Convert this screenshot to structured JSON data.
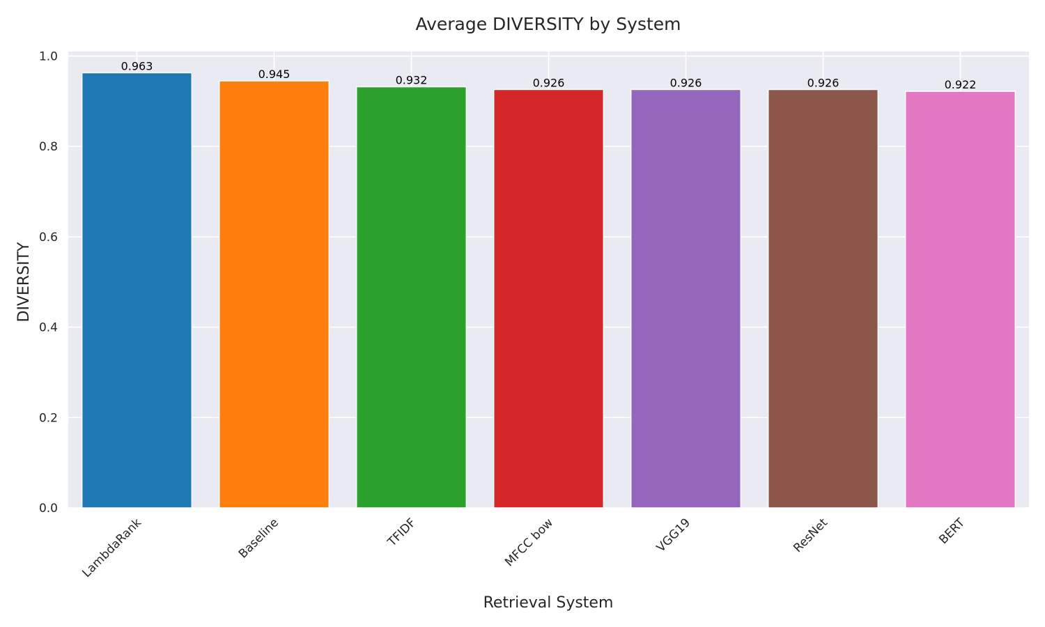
{
  "chart_data": {
    "type": "bar",
    "title": "Average DIVERSITY by System",
    "xlabel": "Retrieval System",
    "ylabel": "DIVERSITY",
    "categories": [
      "LambdaRank",
      "Baseline",
      "TFIDF",
      "MFCC bow",
      "VGG19",
      "ResNet",
      "BERT"
    ],
    "values": [
      0.963,
      0.945,
      0.932,
      0.926,
      0.926,
      0.926,
      0.922
    ],
    "value_labels": [
      "0.963",
      "0.945",
      "0.932",
      "0.926",
      "0.926",
      "0.926",
      "0.922"
    ],
    "colors": [
      "#1f77b4",
      "#ff7f0e",
      "#2ca02c",
      "#d62728",
      "#9467bd",
      "#8c564b",
      "#e377c2"
    ],
    "ylim": [
      0,
      1.01
    ],
    "yticks": [
      0.0,
      0.2,
      0.4,
      0.6,
      0.8,
      1.0
    ],
    "ytick_labels": [
      "0.0",
      "0.2",
      "0.4",
      "0.6",
      "0.8",
      "1.0"
    ],
    "grid": true,
    "background": "#eaeaf2"
  }
}
